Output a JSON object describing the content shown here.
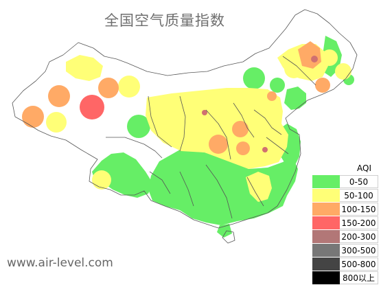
{
  "title": "全国空气质量指数",
  "legend": {
    "title": "AQI",
    "items": [
      {
        "label": "0-50",
        "color": "#66ee66"
      },
      {
        "label": "50-100",
        "color": "#ffff77"
      },
      {
        "label": "100-150",
        "color": "#ffaa66"
      },
      {
        "label": "150-200",
        "color": "#ff6666"
      },
      {
        "label": "200-300",
        "color": "#b27777"
      },
      {
        "label": "300-500",
        "color": "#777777"
      },
      {
        "label": "500-800",
        "color": "#444444"
      },
      {
        "label": "800以上",
        "color": "#000000"
      }
    ]
  },
  "watermark": "www.air-level.com"
}
